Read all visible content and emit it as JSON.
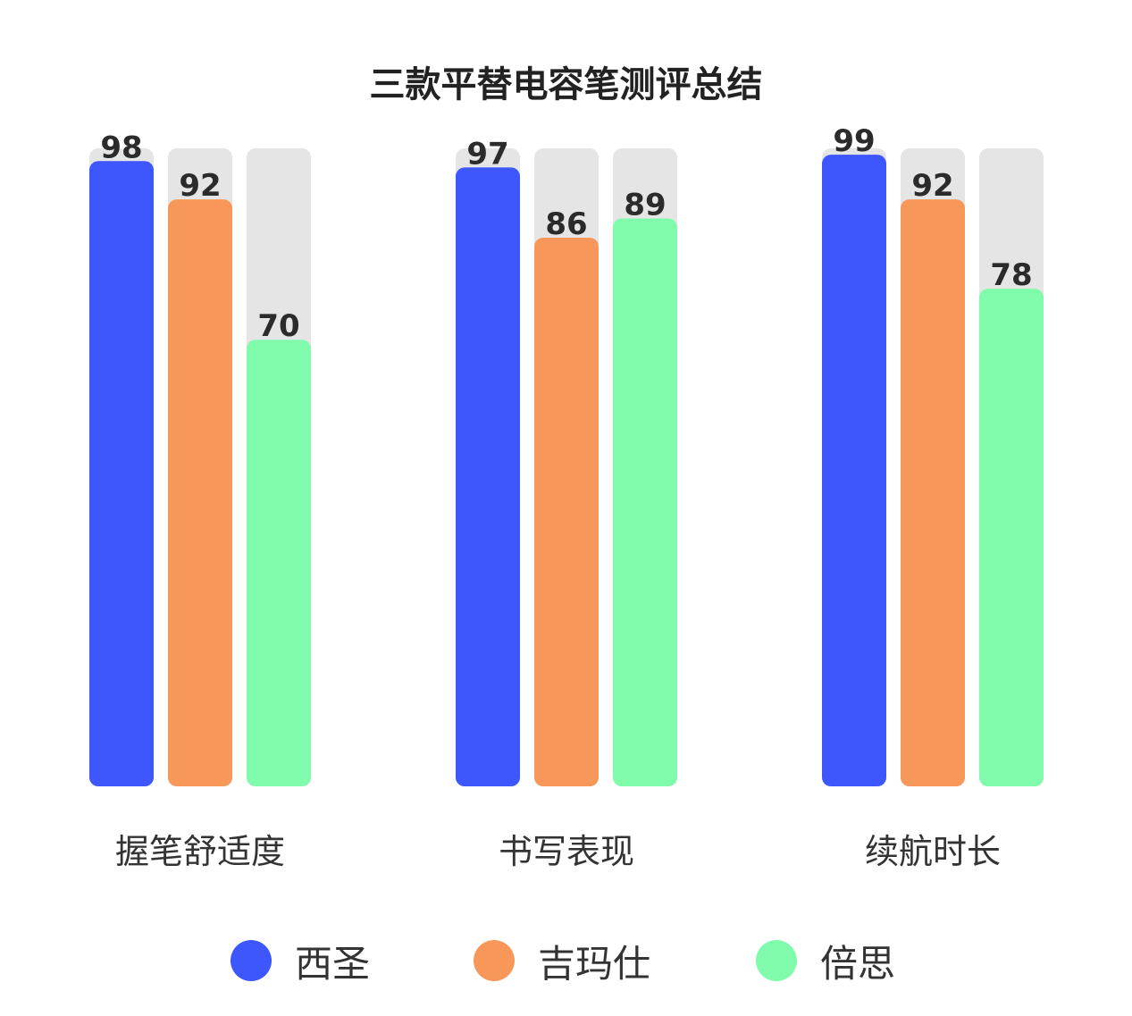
{
  "chart_data": {
    "type": "bar",
    "title": "三款平替电容笔测评总结",
    "xlabel": "",
    "ylabel": "",
    "ylim": [
      0,
      100
    ],
    "grid": false,
    "legend_position": "bottom",
    "categories": [
      "握笔舒适度",
      "书写表现",
      "续航时长"
    ],
    "series": [
      {
        "name": "西圣",
        "color": "#3d57fc",
        "values": [
          98,
          97,
          99
        ]
      },
      {
        "name": "吉玛仕",
        "color": "#f7985a",
        "values": [
          92,
          86,
          92
        ]
      },
      {
        "name": "倍思",
        "color": "#80fbab",
        "values": [
          70,
          89,
          78
        ]
      }
    ],
    "track_color": "#e5e5e5"
  }
}
